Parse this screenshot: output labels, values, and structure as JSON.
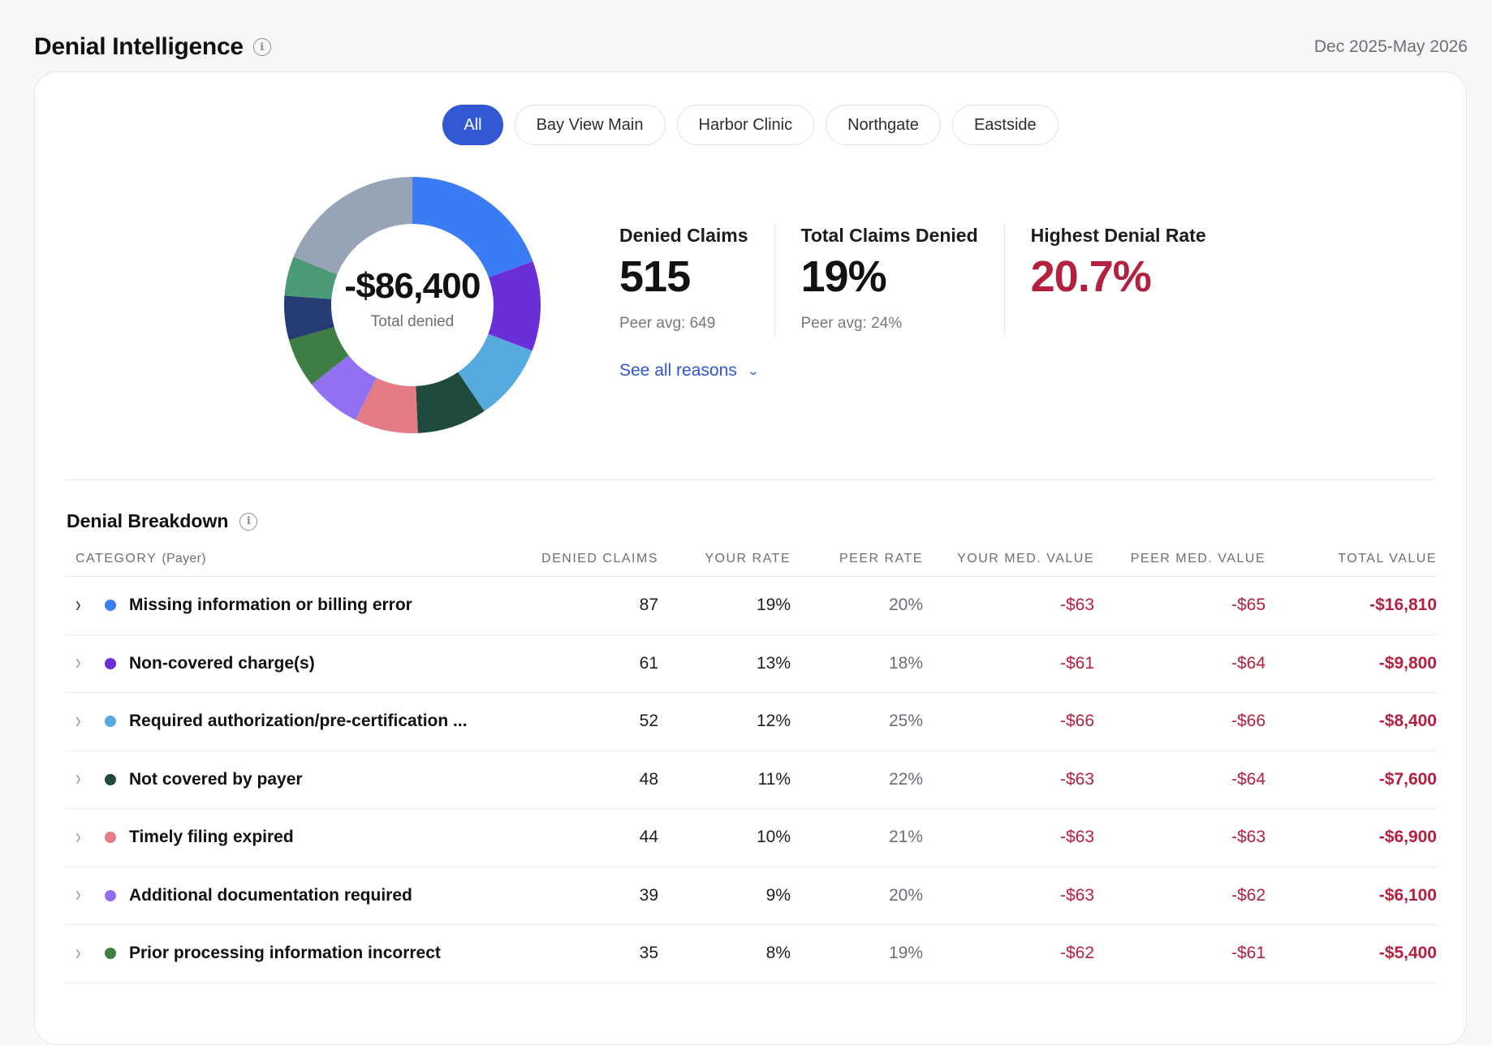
{
  "header": {
    "title": "Denial Intelligence",
    "date_range": "Dec 2025-May 2026"
  },
  "tabs": [
    {
      "label": "All",
      "active": true
    },
    {
      "label": "Bay View Main",
      "active": false
    },
    {
      "label": "Harbor Clinic",
      "active": false
    },
    {
      "label": "Northgate",
      "active": false
    },
    {
      "label": "Eastside",
      "active": false
    }
  ],
  "donut": {
    "center_value": "-$86,400",
    "center_label": "Total denied"
  },
  "chart_data": {
    "type": "pie",
    "title": "",
    "slices": [
      {
        "value": 16810,
        "color": "#3b7cf4"
      },
      {
        "value": 9800,
        "color": "#6a2fd6"
      },
      {
        "value": 8400,
        "color": "#55aade"
      },
      {
        "value": 7600,
        "color": "#1f4a3d"
      },
      {
        "value": 6900,
        "color": "#e57b85"
      },
      {
        "value": 6100,
        "color": "#9171f1"
      },
      {
        "value": 5400,
        "color": "#3e7e45"
      },
      {
        "value": 4800,
        "color": "#243b73"
      },
      {
        "value": 4300,
        "color": "#4a9a76"
      },
      {
        "value": 16290,
        "color": "#97a4b7"
      }
    ]
  },
  "stats": [
    {
      "label": "Denied Claims",
      "value": "515",
      "sub": "Peer avg: 649",
      "highlight": false
    },
    {
      "label": "Total Claims Denied",
      "value": "19%",
      "sub": "Peer avg: 24%",
      "highlight": false
    },
    {
      "label": "Highest Denial Rate",
      "value": "20.7%",
      "sub": "",
      "highlight": true
    }
  ],
  "see_all_label": "See all reasons",
  "breakdown": {
    "title": "Denial Breakdown",
    "columns": {
      "category": "CATEGORY",
      "category_sub": "(Payer)",
      "denied_claims": "DENIED CLAIMS",
      "your_rate": "YOUR RATE",
      "peer_rate": "PEER RATE",
      "your_med": "YOUR MED. VALUE",
      "peer_med": "PEER MED. VALUE",
      "total": "TOTAL VALUE"
    },
    "rows": [
      {
        "label": "Missing information or billing error",
        "color": "#3b7cf4",
        "denied": "87",
        "your_rate": "19%",
        "peer_rate": "20%",
        "your_med": "-$63",
        "peer_med": "-$65",
        "total": "-$16,810"
      },
      {
        "label": "Non-covered charge(s)",
        "color": "#6a2fd6",
        "denied": "61",
        "your_rate": "13%",
        "peer_rate": "18%",
        "your_med": "-$61",
        "peer_med": "-$64",
        "total": "-$9,800"
      },
      {
        "label": "Required authorization/pre-certification ...",
        "color": "#55aade",
        "denied": "52",
        "your_rate": "12%",
        "peer_rate": "25%",
        "your_med": "-$66",
        "peer_med": "-$66",
        "total": "-$8,400"
      },
      {
        "label": "Not covered by payer",
        "color": "#1f4a3d",
        "denied": "48",
        "your_rate": "11%",
        "peer_rate": "22%",
        "your_med": "-$63",
        "peer_med": "-$64",
        "total": "-$7,600"
      },
      {
        "label": "Timely filing expired",
        "color": "#e57b85",
        "denied": "44",
        "your_rate": "10%",
        "peer_rate": "21%",
        "your_med": "-$63",
        "peer_med": "-$63",
        "total": "-$6,900"
      },
      {
        "label": "Additional documentation required",
        "color": "#9171f1",
        "denied": "39",
        "your_rate": "9%",
        "peer_rate": "20%",
        "your_med": "-$63",
        "peer_med": "-$62",
        "total": "-$6,100"
      },
      {
        "label": "Prior processing information incorrect",
        "color": "#3e7e45",
        "denied": "35",
        "your_rate": "8%",
        "peer_rate": "19%",
        "your_med": "-$62",
        "peer_med": "-$61",
        "total": "-$5,400"
      }
    ]
  }
}
